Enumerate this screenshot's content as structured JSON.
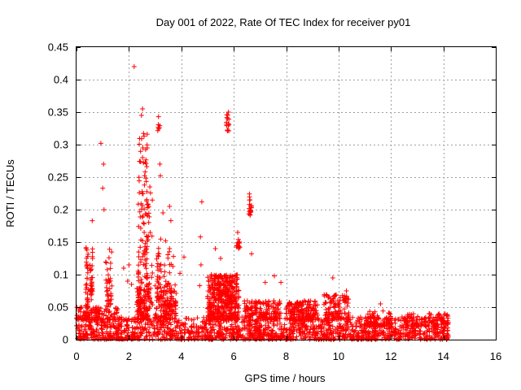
{
  "chart_data": {
    "type": "scatter",
    "title": "Day 001 of 2022, Rate Of TEC Index for receiver py01",
    "xlabel": "GPS time / hours",
    "ylabel": "ROTI / TECUs",
    "xlim": [
      0,
      16
    ],
    "ylim": [
      0,
      0.45
    ],
    "xticks": [
      0,
      2,
      4,
      6,
      8,
      10,
      12,
      14,
      16
    ],
    "xtick_labels": [
      "0",
      "2",
      "4",
      "6",
      "8",
      "10",
      "12",
      "14",
      "16"
    ],
    "yticks": [
      0,
      0.05,
      0.1,
      0.15,
      0.2,
      0.25,
      0.3,
      0.35,
      0.4,
      0.45
    ],
    "ytick_labels": [
      "0",
      "0.05",
      "0.1",
      "0.15",
      "0.2",
      "0.25",
      "0.3",
      "0.35",
      "0.4",
      "0.45"
    ],
    "grid": true,
    "marker": "+",
    "color": "#ff0000",
    "x_data_range": [
      0,
      14.2
    ],
    "clusters": [
      {
        "x0": 0.0,
        "x1": 14.2,
        "y0": 0.0,
        "y1": 0.035,
        "n": 1600
      },
      {
        "x0": 0.0,
        "x1": 1.6,
        "y0": 0.03,
        "y1": 0.05,
        "n": 120
      },
      {
        "x0": 2.3,
        "x1": 2.8,
        "y0": 0.03,
        "y1": 0.08,
        "n": 120
      },
      {
        "x0": 3.0,
        "x1": 3.8,
        "y0": 0.03,
        "y1": 0.09,
        "n": 120
      },
      {
        "x0": 5.0,
        "x1": 6.2,
        "y0": 0.03,
        "y1": 0.1,
        "n": 380
      },
      {
        "x0": 6.4,
        "x1": 7.8,
        "y0": 0.03,
        "y1": 0.06,
        "n": 160
      },
      {
        "x0": 8.0,
        "x1": 9.2,
        "y0": 0.03,
        "y1": 0.06,
        "n": 170
      },
      {
        "x0": 9.4,
        "x1": 10.4,
        "y0": 0.03,
        "y1": 0.07,
        "n": 120
      },
      {
        "x0": 11.0,
        "x1": 12.0,
        "y0": 0.02,
        "y1": 0.045,
        "n": 70
      },
      {
        "x0": 12.5,
        "x1": 14.2,
        "y0": 0.02,
        "y1": 0.04,
        "n": 90
      },
      {
        "x0": 0.35,
        "x1": 0.45,
        "y0": 0.05,
        "y1": 0.145,
        "n": 35
      },
      {
        "x0": 0.5,
        "x1": 0.62,
        "y0": 0.06,
        "y1": 0.145,
        "n": 30
      },
      {
        "x0": 1.1,
        "x1": 1.35,
        "y0": 0.05,
        "y1": 0.15,
        "n": 40
      },
      {
        "x0": 2.35,
        "x1": 2.7,
        "y0": 0.05,
        "y1": 0.32,
        "n": 95
      },
      {
        "x0": 2.6,
        "x1": 2.9,
        "y0": 0.05,
        "y1": 0.24,
        "n": 40
      },
      {
        "x0": 3.05,
        "x1": 3.25,
        "y0": 0.06,
        "y1": 0.16,
        "n": 35
      },
      {
        "x0": 3.3,
        "x1": 3.7,
        "y0": 0.04,
        "y1": 0.14,
        "n": 35
      },
      {
        "x0": 5.4,
        "x1": 5.9,
        "y0": 0.06,
        "y1": 0.1,
        "n": 60
      },
      {
        "x0": 6.1,
        "x1": 6.25,
        "y0": 0.14,
        "y1": 0.17,
        "n": 12
      },
      {
        "x0": 6.55,
        "x1": 6.68,
        "y0": 0.19,
        "y1": 0.225,
        "n": 16
      },
      {
        "x0": 5.72,
        "x1": 5.85,
        "y0": 0.32,
        "y1": 0.35,
        "n": 14
      },
      {
        "x0": 3.1,
        "x1": 3.2,
        "y0": 0.32,
        "y1": 0.335,
        "n": 7
      }
    ],
    "outliers": [
      [
        2.2,
        0.42
      ],
      [
        2.52,
        0.355
      ],
      [
        2.48,
        0.345
      ],
      [
        3.13,
        0.343
      ],
      [
        5.8,
        0.35
      ],
      [
        5.76,
        0.34
      ],
      [
        0.93,
        0.302
      ],
      [
        2.58,
        0.313
      ],
      [
        2.7,
        0.295
      ],
      [
        2.52,
        0.28
      ],
      [
        3.18,
        0.27
      ],
      [
        1.03,
        0.27
      ],
      [
        3.2,
        0.252
      ],
      [
        1.0,
        0.233
      ],
      [
        2.8,
        0.235
      ],
      [
        4.78,
        0.212
      ],
      [
        6.6,
        0.224
      ],
      [
        6.62,
        0.215
      ],
      [
        3.55,
        0.205
      ],
      [
        1.05,
        0.2
      ],
      [
        3.3,
        0.195
      ],
      [
        0.6,
        0.183
      ],
      [
        3.6,
        0.183
      ],
      [
        6.15,
        0.165
      ],
      [
        4.73,
        0.158
      ],
      [
        6.2,
        0.15
      ],
      [
        3.4,
        0.152
      ],
      [
        3.55,
        0.14
      ],
      [
        3.7,
        0.128
      ],
      [
        4.1,
        0.127
      ],
      [
        5.3,
        0.14
      ],
      [
        6.68,
        0.132
      ],
      [
        4.75,
        0.115
      ],
      [
        5.5,
        0.125
      ],
      [
        2.0,
        0.115
      ],
      [
        3.95,
        0.102
      ],
      [
        4.7,
        0.083
      ],
      [
        7.2,
        0.088
      ],
      [
        7.55,
        0.098
      ],
      [
        7.8,
        0.088
      ],
      [
        9.78,
        0.095
      ],
      [
        9.6,
        0.065
      ],
      [
        10.3,
        0.075
      ],
      [
        1.8,
        0.11
      ],
      [
        1.95,
        0.09
      ],
      [
        2.1,
        0.085
      ],
      [
        11.6,
        0.055
      ]
    ]
  }
}
